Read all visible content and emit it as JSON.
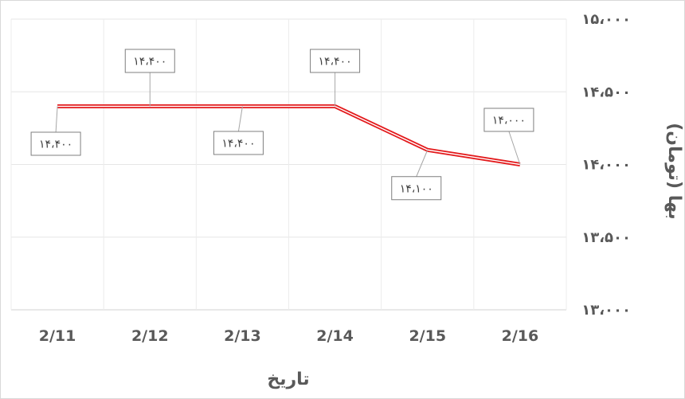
{
  "chart_data": {
    "type": "line",
    "categories": [
      "2/11",
      "2/12",
      "2/13",
      "2/14",
      "2/15",
      "2/16"
    ],
    "series": [
      {
        "values": [
          14400,
          14400,
          14400,
          14400,
          14100,
          14000
        ],
        "data_labels": [
          "۱۴،۴۰۰",
          "۱۴،۴۰۰",
          "۱۴،۴۰۰",
          "۱۴،۴۰۰",
          "۱۴،۱۰۰",
          "۱۴،۰۰۰"
        ],
        "color": "#e31a1c"
      }
    ],
    "y_ticks": [
      13000,
      13500,
      14000,
      14500,
      15000
    ],
    "y_tick_labels": [
      "۱۳،۰۰۰",
      "۱۳،۵۰۰",
      "۱۴،۰۰۰",
      "۱۴،۵۰۰",
      "۱۵،۰۰۰"
    ],
    "ylim": [
      13000,
      15000
    ],
    "xlabel": "تاریخ",
    "ylabel": "بها (تومان)",
    "grid": true,
    "y_axis_side": "right"
  }
}
